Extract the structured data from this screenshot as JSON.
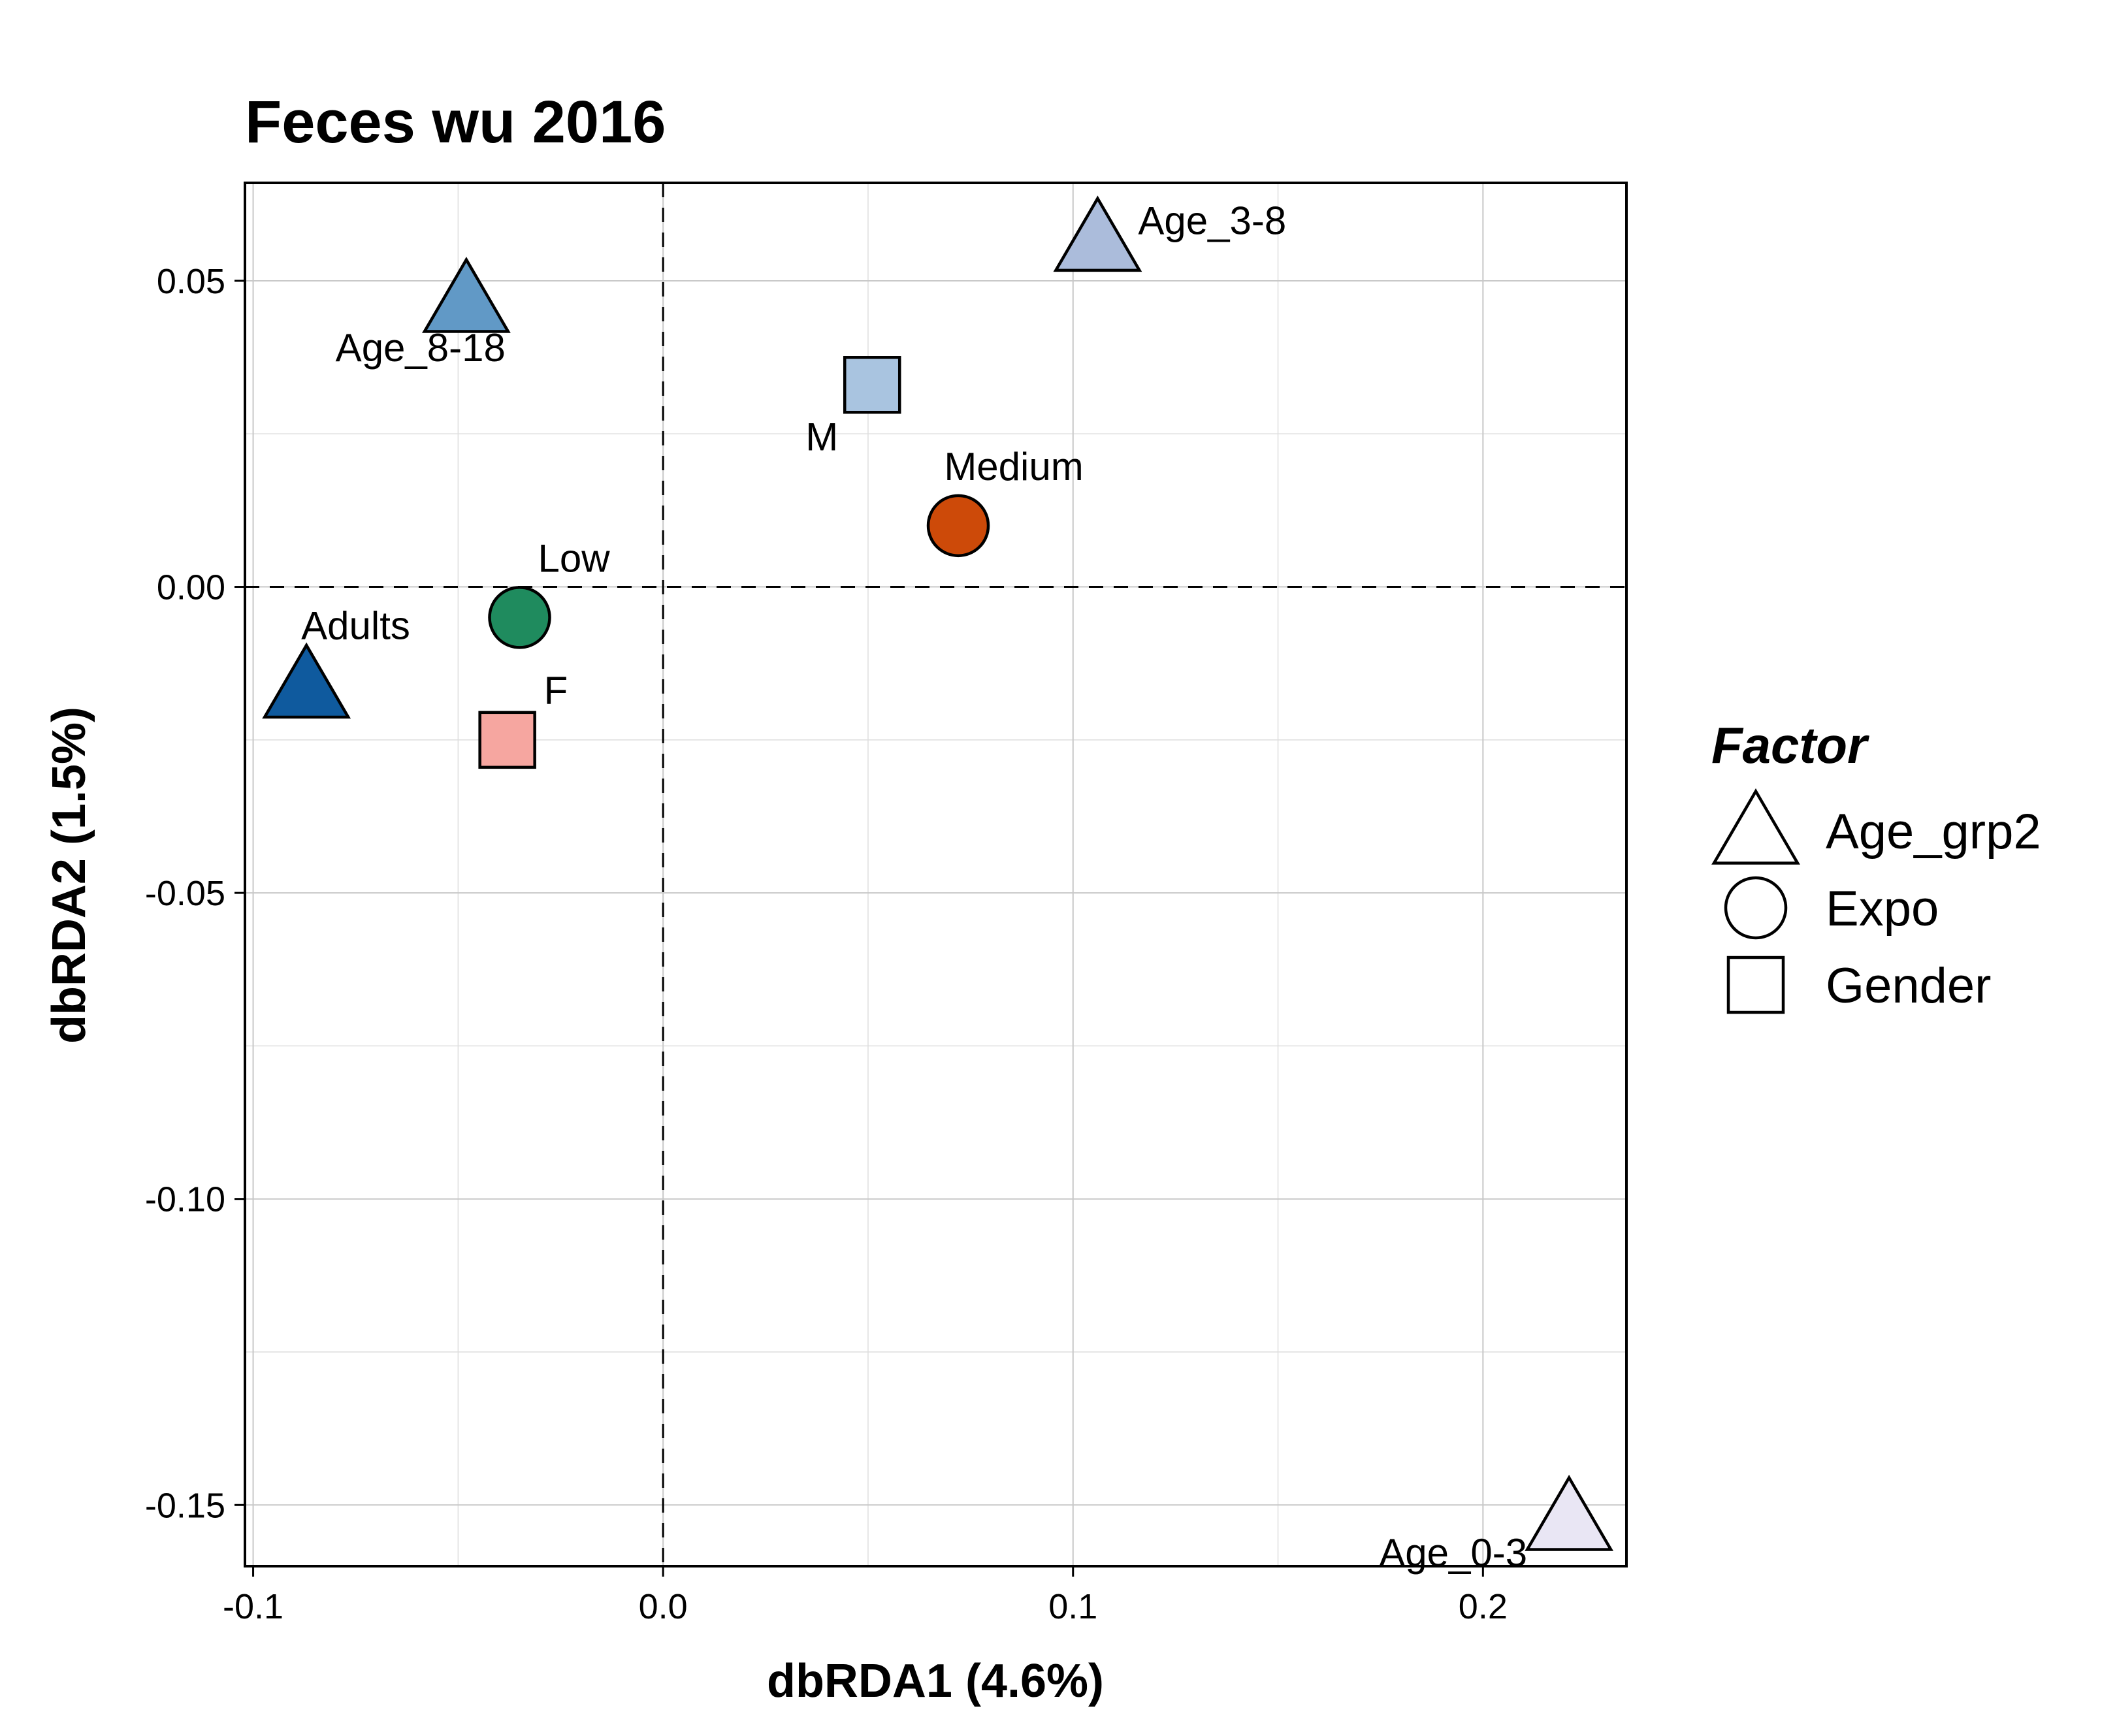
{
  "chart_data": {
    "type": "scatter",
    "title": "Feces wu 2016",
    "xlabel": "dbRDA1 (4.6%)",
    "ylabel": "dbRDA2 (1.5%)",
    "xlim": [
      -0.102,
      0.235
    ],
    "ylim": [
      -0.16,
      0.066
    ],
    "xticks": [
      -0.1,
      0.0,
      0.1,
      0.2
    ],
    "xtick_labels": [
      "-0.1",
      "0.0",
      "0.1",
      "0.2"
    ],
    "yticks": [
      -0.15,
      -0.1,
      -0.05,
      0.0,
      0.05
    ],
    "ytick_labels": [
      "-0.15",
      "-0.10",
      "-0.05",
      "0.00",
      "0.05"
    ],
    "grid": true,
    "reference_lines": {
      "x": 0,
      "y": 0,
      "style": "dashed"
    },
    "legend": {
      "title": "Factor",
      "position": "right",
      "entries": [
        {
          "label": "Age_grp2",
          "shape": "triangle"
        },
        {
          "label": "Expo",
          "shape": "circle"
        },
        {
          "label": "Gender",
          "shape": "square"
        }
      ]
    },
    "points": [
      {
        "label": "Age_8-18",
        "factor": "Age_grp2",
        "shape": "triangle",
        "x": -0.048,
        "y": 0.047,
        "color": "#6199c6",
        "label_pos": "below-left"
      },
      {
        "label": "Age_3-8",
        "factor": "Age_grp2",
        "shape": "triangle",
        "x": 0.106,
        "y": 0.057,
        "color": "#abbcdb",
        "label_pos": "right"
      },
      {
        "label": "Adults",
        "factor": "Age_grp2",
        "shape": "triangle",
        "x": -0.087,
        "y": -0.016,
        "color": "#0f5a9e",
        "label_pos": "above-right"
      },
      {
        "label": "Age_0-3",
        "factor": "Age_grp2",
        "shape": "triangle",
        "x": 0.221,
        "y": -0.152,
        "color": "#e9e6f4",
        "label_pos": "below-left"
      },
      {
        "label": "Low",
        "factor": "Expo",
        "shape": "circle",
        "x": -0.035,
        "y": -0.005,
        "color": "#1f8b5e",
        "label_pos": "above-right"
      },
      {
        "label": "Medium",
        "factor": "Expo",
        "shape": "circle",
        "x": 0.072,
        "y": 0.01,
        "color": "#cd4a09",
        "label_pos": "above"
      },
      {
        "label": "M",
        "factor": "Gender",
        "shape": "square",
        "x": 0.051,
        "y": 0.033,
        "color": "#a9c4e0",
        "label_pos": "below-left"
      },
      {
        "label": "F",
        "factor": "Gender",
        "shape": "square",
        "x": -0.038,
        "y": -0.025,
        "color": "#f6a6a0",
        "label_pos": "above-right"
      }
    ]
  }
}
